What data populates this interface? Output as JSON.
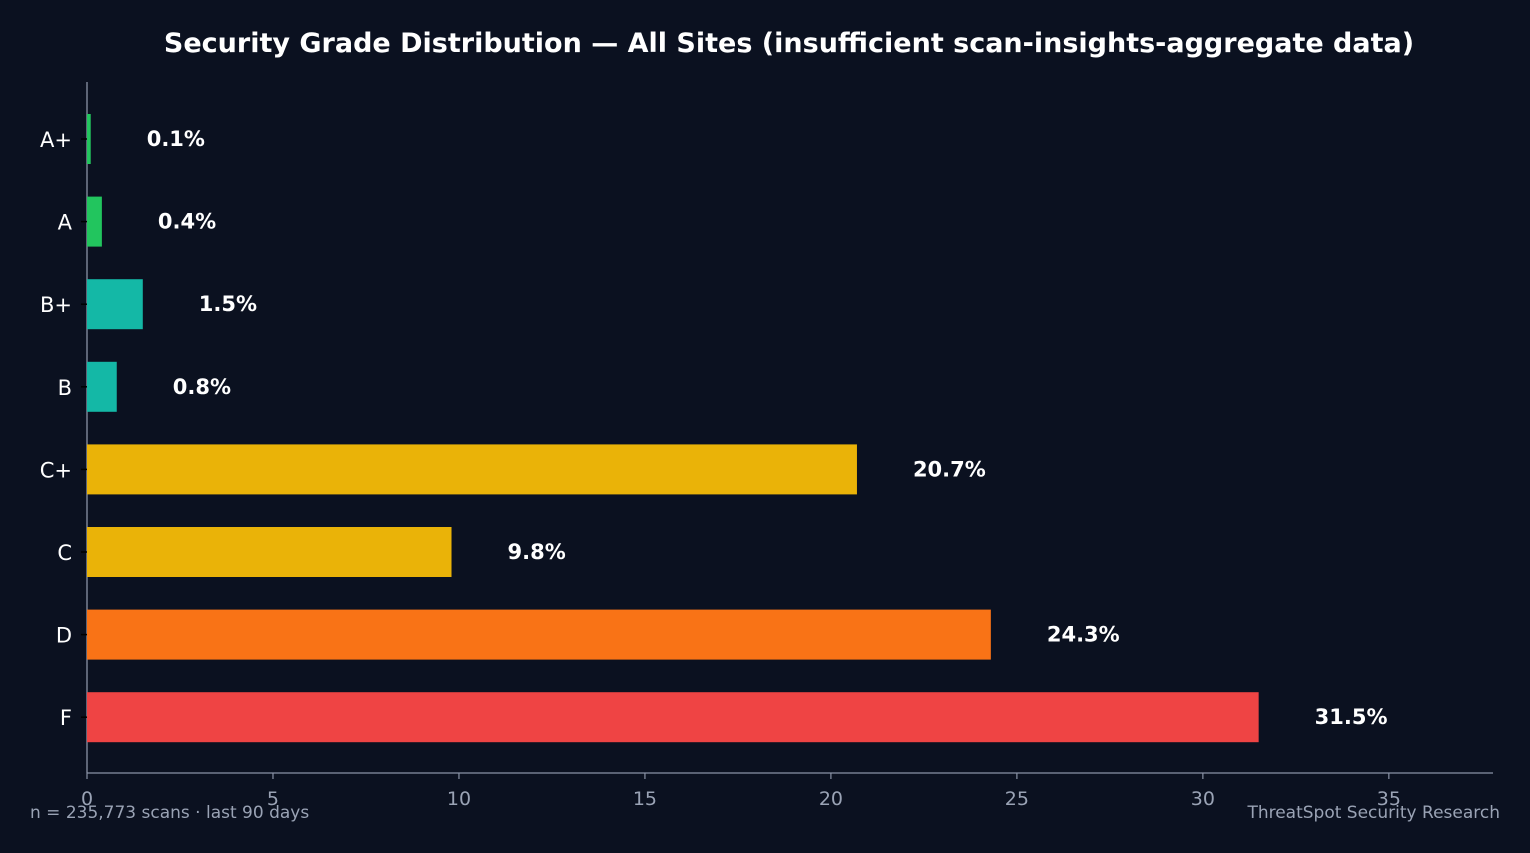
{
  "chart_data": {
    "type": "bar",
    "orientation": "horizontal",
    "title": "Security Grade Distribution — All Sites (insufficient scan-insights-aggregate data)",
    "categories": [
      "A+",
      "A",
      "B+",
      "B",
      "C+",
      "C",
      "D",
      "F"
    ],
    "values": [
      0.1,
      0.4,
      1.5,
      0.8,
      20.7,
      9.8,
      24.3,
      31.5
    ],
    "value_labels": [
      "0.1%",
      "0.4%",
      "1.5%",
      "0.8%",
      "20.7%",
      "9.8%",
      "24.3%",
      "31.5%"
    ],
    "colors": [
      "#22c55e",
      "#22c55e",
      "#14b8a6",
      "#14b8a6",
      "#eab308",
      "#eab308",
      "#f97316",
      "#ef4444"
    ],
    "x_ticks": [
      0,
      5,
      10,
      15,
      20,
      25,
      30,
      35
    ],
    "xlim": [
      0,
      37.8
    ],
    "xlabel": "",
    "ylabel": "",
    "grid": false,
    "legend": "none"
  },
  "footer": {
    "left": "n = 235,773 scans · last 90 days",
    "right": "ThreatSpot Security Research"
  },
  "theme": {
    "background": "#0b1120",
    "axis": "#8a93a6",
    "text": "#ffffff",
    "muted_text": "#9aa3b5"
  }
}
